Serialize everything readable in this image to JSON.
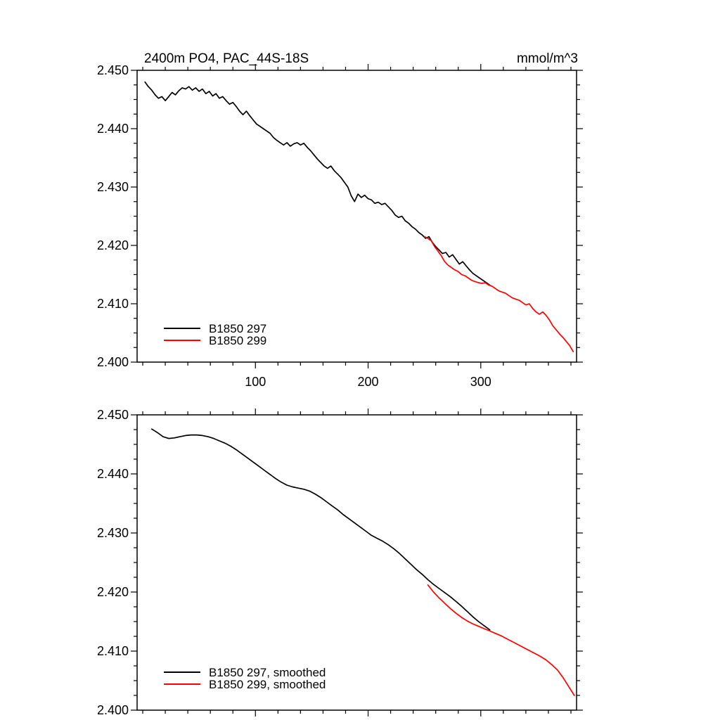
{
  "figure_background": "#ffffff",
  "chart_data": [
    {
      "type": "line",
      "title": "2400m PO4, PAC_44S-18S",
      "right_title": "mmol/m^3",
      "legend_position": "inside-bottom-left",
      "grid": false,
      "x": {
        "min": -5,
        "max": 385,
        "ticks": [
          100,
          200,
          300
        ],
        "tick_labels": [
          "100",
          "200",
          "300"
        ],
        "minor_step": 20,
        "labels_visible": true
      },
      "y": {
        "min": 2.4,
        "max": 2.45,
        "ticks": [
          2.4,
          2.41,
          2.42,
          2.43,
          2.44,
          2.45
        ],
        "tick_labels": [
          "2.400",
          "2.410",
          "2.420",
          "2.430",
          "2.440",
          "2.450"
        ],
        "minor_step": 0.0025,
        "labels_visible": true
      },
      "series": [
        {
          "name": "B1850 297",
          "color": "#000000",
          "x_start": 2,
          "x_step": 3,
          "y": [
            2.448,
            2.4472,
            2.4466,
            2.4458,
            2.4452,
            2.4455,
            2.4448,
            2.4455,
            2.4462,
            2.4458,
            2.4465,
            2.447,
            2.4468,
            2.4472,
            2.4466,
            2.447,
            2.4464,
            2.4468,
            2.446,
            2.4464,
            2.4456,
            2.446,
            2.4452,
            2.4455,
            2.4448,
            2.4442,
            2.4445,
            2.4438,
            2.443,
            2.4424,
            2.443,
            2.4422,
            2.4415,
            2.4408,
            2.4404,
            2.44,
            2.4396,
            2.4392,
            2.4385,
            2.438,
            2.4376,
            2.4372,
            2.4376,
            2.437,
            2.4374,
            2.4376,
            2.4372,
            2.4375,
            2.4368,
            2.4362,
            2.4355,
            2.4348,
            2.4342,
            2.4336,
            2.4332,
            2.4336,
            2.4328,
            2.4322,
            2.4316,
            2.4308,
            2.43,
            2.4285,
            2.4275,
            2.4288,
            2.4282,
            2.4286,
            2.428,
            2.4278,
            2.4272,
            2.4274,
            2.427,
            2.4272,
            2.4266,
            2.426,
            2.4252,
            2.4248,
            2.425,
            2.4242,
            2.4238,
            2.4232,
            2.4228,
            2.4222,
            2.4218,
            2.4212,
            2.4215,
            2.4205,
            2.4198,
            2.4192,
            2.4186,
            2.4188,
            2.418,
            2.4184,
            2.4176,
            2.4168,
            2.4172,
            2.4165,
            2.4158,
            2.4152,
            2.4148,
            2.4144,
            2.414,
            2.4136,
            2.4132
          ]
        },
        {
          "name": "B1850 299",
          "color": "#ff0000",
          "x_start": 250,
          "x_step": 3,
          "y": [
            2.4215,
            2.4212,
            2.4208,
            2.4198,
            2.419,
            2.4182,
            2.4172,
            2.4166,
            2.4162,
            2.4158,
            2.4155,
            2.415,
            2.4148,
            2.4144,
            2.414,
            2.4138,
            2.4136,
            2.4135,
            2.4136,
            2.4132,
            2.413,
            2.4126,
            2.4122,
            2.412,
            2.4118,
            2.4114,
            2.411,
            2.4108,
            2.4106,
            2.4102,
            2.4098,
            2.41,
            2.4092,
            2.4086,
            2.4082,
            2.4086,
            2.408,
            2.4072,
            2.4062,
            2.4055,
            2.4048,
            2.4042,
            2.4035,
            2.4028,
            2.4018
          ]
        }
      ]
    },
    {
      "type": "line",
      "title": "",
      "right_title": "",
      "legend_position": "inside-bottom-left",
      "grid": false,
      "x": {
        "min": -5,
        "max": 385,
        "ticks": [
          100,
          200,
          300
        ],
        "tick_labels": [],
        "minor_step": 20,
        "labels_visible": false
      },
      "y": {
        "min": 2.4,
        "max": 2.45,
        "ticks": [
          2.4,
          2.41,
          2.42,
          2.43,
          2.44,
          2.45
        ],
        "tick_labels": [
          "2.400",
          "2.410",
          "2.420",
          "2.430",
          "2.440",
          "2.450"
        ],
        "minor_step": 0.0025,
        "labels_visible": true
      },
      "series": [
        {
          "name": "B1850 297, smoothed",
          "color": "#000000",
          "x_start": 8,
          "x_step": 5,
          "y": [
            2.4476,
            2.447,
            2.4463,
            2.446,
            2.4461,
            2.4463,
            2.4465,
            2.4466,
            2.4466,
            2.4465,
            2.4463,
            2.446,
            2.4456,
            2.4452,
            2.4447,
            2.4441,
            2.4434,
            2.4427,
            2.442,
            2.4413,
            2.4406,
            2.4399,
            2.4392,
            2.4386,
            2.4381,
            2.4378,
            2.4376,
            2.4374,
            2.4371,
            2.4366,
            2.436,
            2.4353,
            2.4346,
            2.4339,
            2.4331,
            2.4324,
            2.4317,
            2.431,
            2.4303,
            2.4296,
            2.4291,
            2.4286,
            2.428,
            2.4273,
            2.4265,
            2.4256,
            2.4247,
            2.4238,
            2.423,
            2.4221,
            2.4213,
            2.4206,
            2.4199,
            2.4192,
            2.4184,
            2.4176,
            2.4167,
            2.4158,
            2.415,
            2.4143,
            2.4136
          ]
        },
        {
          "name": "B1850 299, smoothed",
          "color": "#ff0000",
          "x_start": 253,
          "x_step": 5,
          "y": [
            2.4212,
            2.42,
            2.419,
            2.4181,
            2.4172,
            2.4164,
            2.4157,
            2.4151,
            2.4146,
            2.4142,
            2.4138,
            2.4134,
            2.413,
            2.4126,
            2.4121,
            2.4116,
            2.4111,
            2.4106,
            2.4101,
            2.4096,
            2.4091,
            2.4085,
            2.4077,
            2.4068,
            2.4055,
            2.404,
            2.4025
          ]
        }
      ]
    }
  ]
}
